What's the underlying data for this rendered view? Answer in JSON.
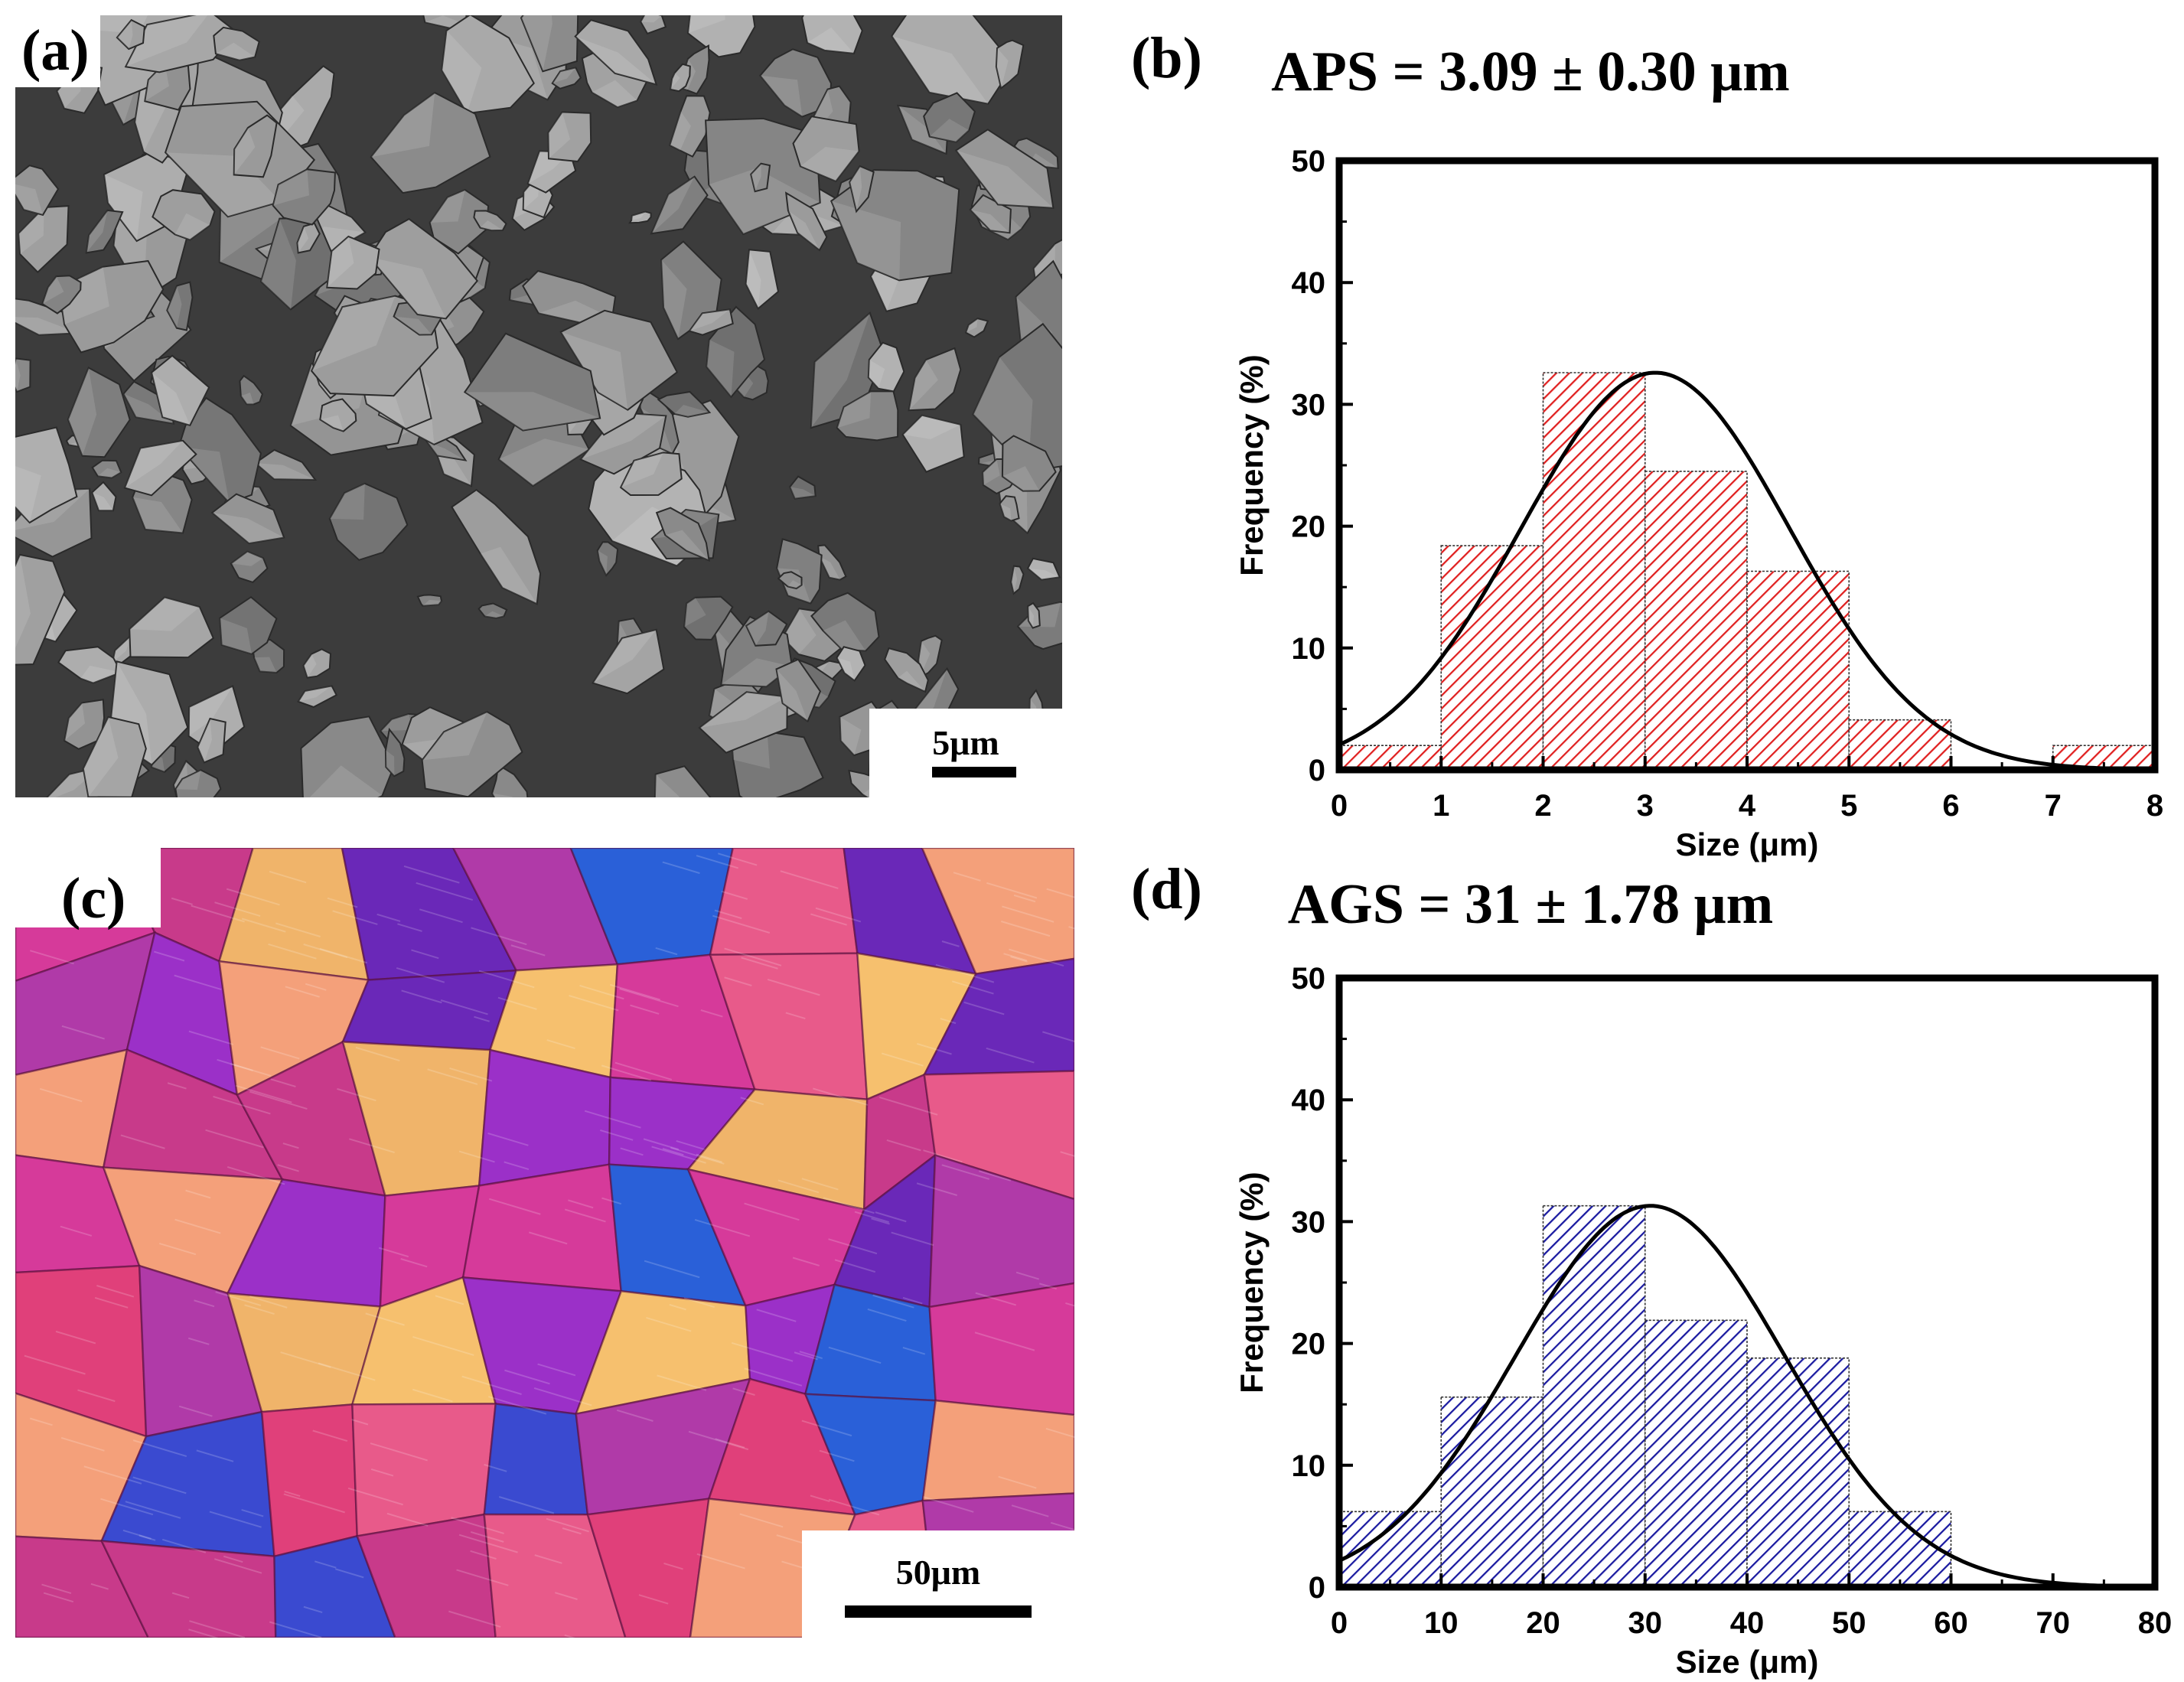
{
  "panels": {
    "a": {
      "label": "(a)",
      "scale_label": "5μm"
    },
    "b": {
      "label": "(b)"
    },
    "c": {
      "label": "(c)",
      "scale_label": "50μm"
    },
    "d": {
      "label": "(d)"
    }
  },
  "colors": {
    "hist_b": "#e02020",
    "hist_d": "#1a1aa0",
    "fit_curve": "#000000",
    "sem_background": "#3c3c3c",
    "sem_particle": "#8a8a8a"
  },
  "chart_data": [
    {
      "type": "bar",
      "panel": "(b)",
      "title": "APS = 3.09 ± 0.30 μm",
      "xlabel": "Size (μm)",
      "ylabel": "Frequency (%)",
      "bin_edges": [
        0,
        1,
        2,
        3,
        4,
        5,
        6,
        7,
        8
      ],
      "values": [
        2,
        18.4,
        32.6,
        24.5,
        16.3,
        4.1,
        0,
        2
      ],
      "xlim": [
        0,
        8
      ],
      "ylim": [
        0,
        50
      ],
      "xticks": [
        "0",
        "1",
        "2",
        "3",
        "4",
        "5",
        "6",
        "7",
        "8"
      ],
      "yticks": [
        "0",
        "10",
        "20",
        "30",
        "40",
        "50"
      ],
      "fit_curve": {
        "type": "normal",
        "mean": 3.1,
        "sd": 1.32,
        "peak": 32.6
      },
      "grid": false,
      "fill": "red hatched"
    },
    {
      "type": "bar",
      "panel": "(d)",
      "title": "AGS = 31 ± 1.78 μm",
      "xlabel": "Size (μm)",
      "ylabel": "Frequency (%)",
      "bin_edges": [
        0,
        10,
        20,
        30,
        40,
        50,
        60,
        70,
        80
      ],
      "values": [
        6.2,
        15.6,
        31.3,
        21.9,
        18.8,
        6.2,
        0,
        0
      ],
      "xlim": [
        0,
        80
      ],
      "ylim": [
        0,
        50
      ],
      "xticks": [
        "0",
        "10",
        "20",
        "30",
        "40",
        "50",
        "60",
        "70",
        "80"
      ],
      "yticks": [
        "0",
        "10",
        "20",
        "30",
        "40",
        "50"
      ],
      "fit_curve": {
        "type": "normal",
        "mean": 30.5,
        "sd": 13.2,
        "peak": 31.3
      },
      "grid": false,
      "fill": "blue hatched"
    }
  ]
}
